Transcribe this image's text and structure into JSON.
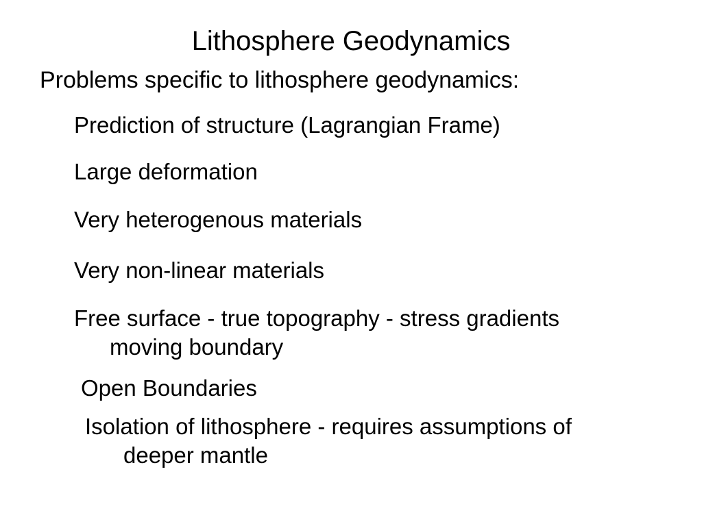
{
  "slide": {
    "title": "Lithosphere Geodynamics",
    "subtitle": "Problems specific to lithosphere geodynamics:",
    "items": {
      "i1": "Prediction of structure (Lagrangian Frame)",
      "i2": "Large deformation",
      "i3": "Very heterogenous materials",
      "i4": "Very non-linear materials",
      "i5": "Free surface - true topography - stress gradients",
      "i5b": "moving boundary",
      "i6": "Open Boundaries",
      "i7": "Isolation of lithosphere  - requires assumptions of",
      "i7b": "deeper mantle"
    }
  },
  "style": {
    "background_color": "#ffffff",
    "text_color": "#000000",
    "title_fontsize": 40,
    "subtitle_fontsize": 34,
    "item_fontsize": 33,
    "font_family": "Arial"
  }
}
